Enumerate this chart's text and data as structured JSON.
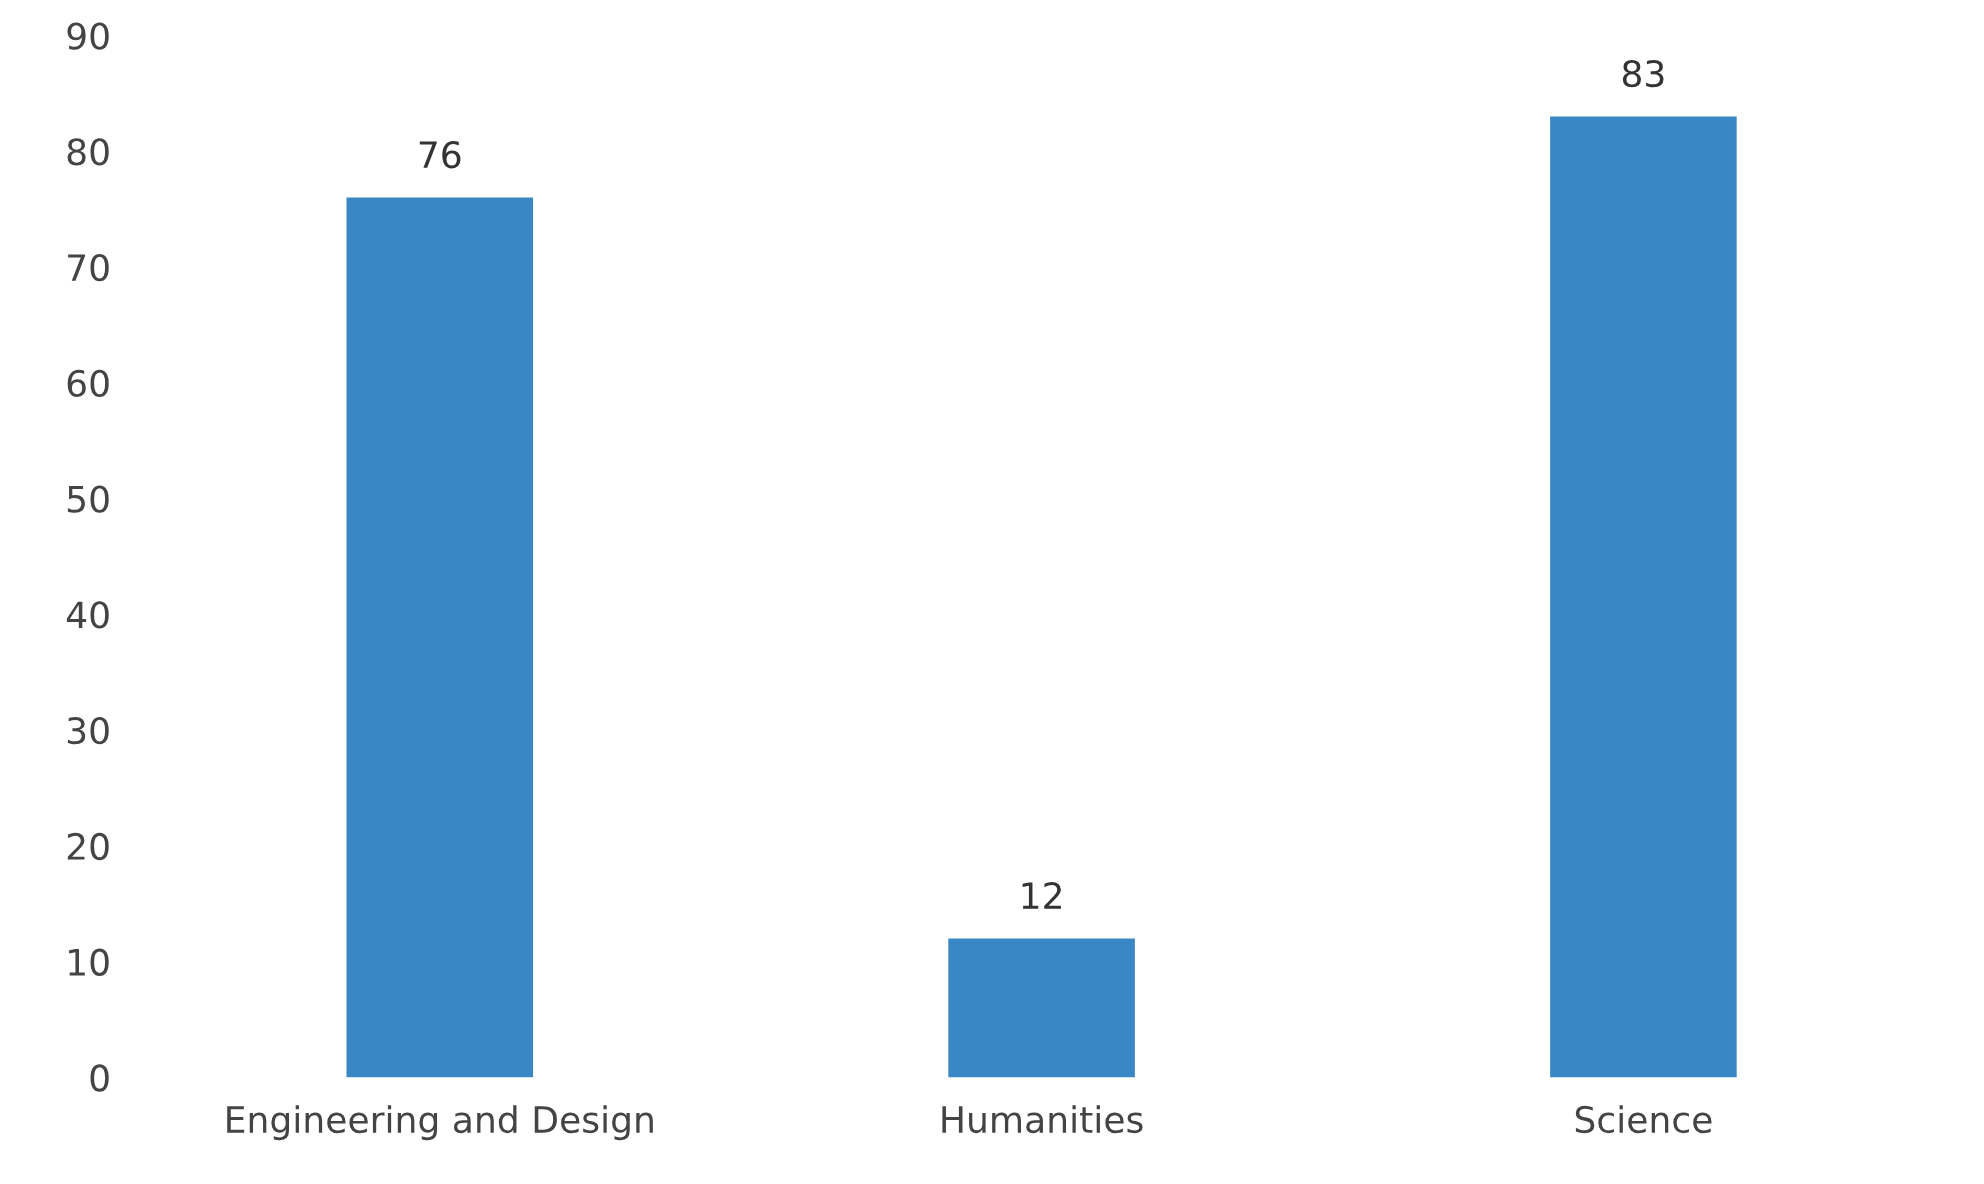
{
  "chart_data": {
    "type": "bar",
    "categories": [
      "Engineering and Design",
      "Humanities",
      "Science"
    ],
    "values": [
      76,
      12,
      83
    ],
    "color": "#3a87c6",
    "ylim": [
      0,
      90
    ],
    "yticks": [
      0,
      10,
      20,
      30,
      40,
      50,
      60,
      70,
      80,
      90
    ],
    "data_labels": true,
    "grid": false
  }
}
